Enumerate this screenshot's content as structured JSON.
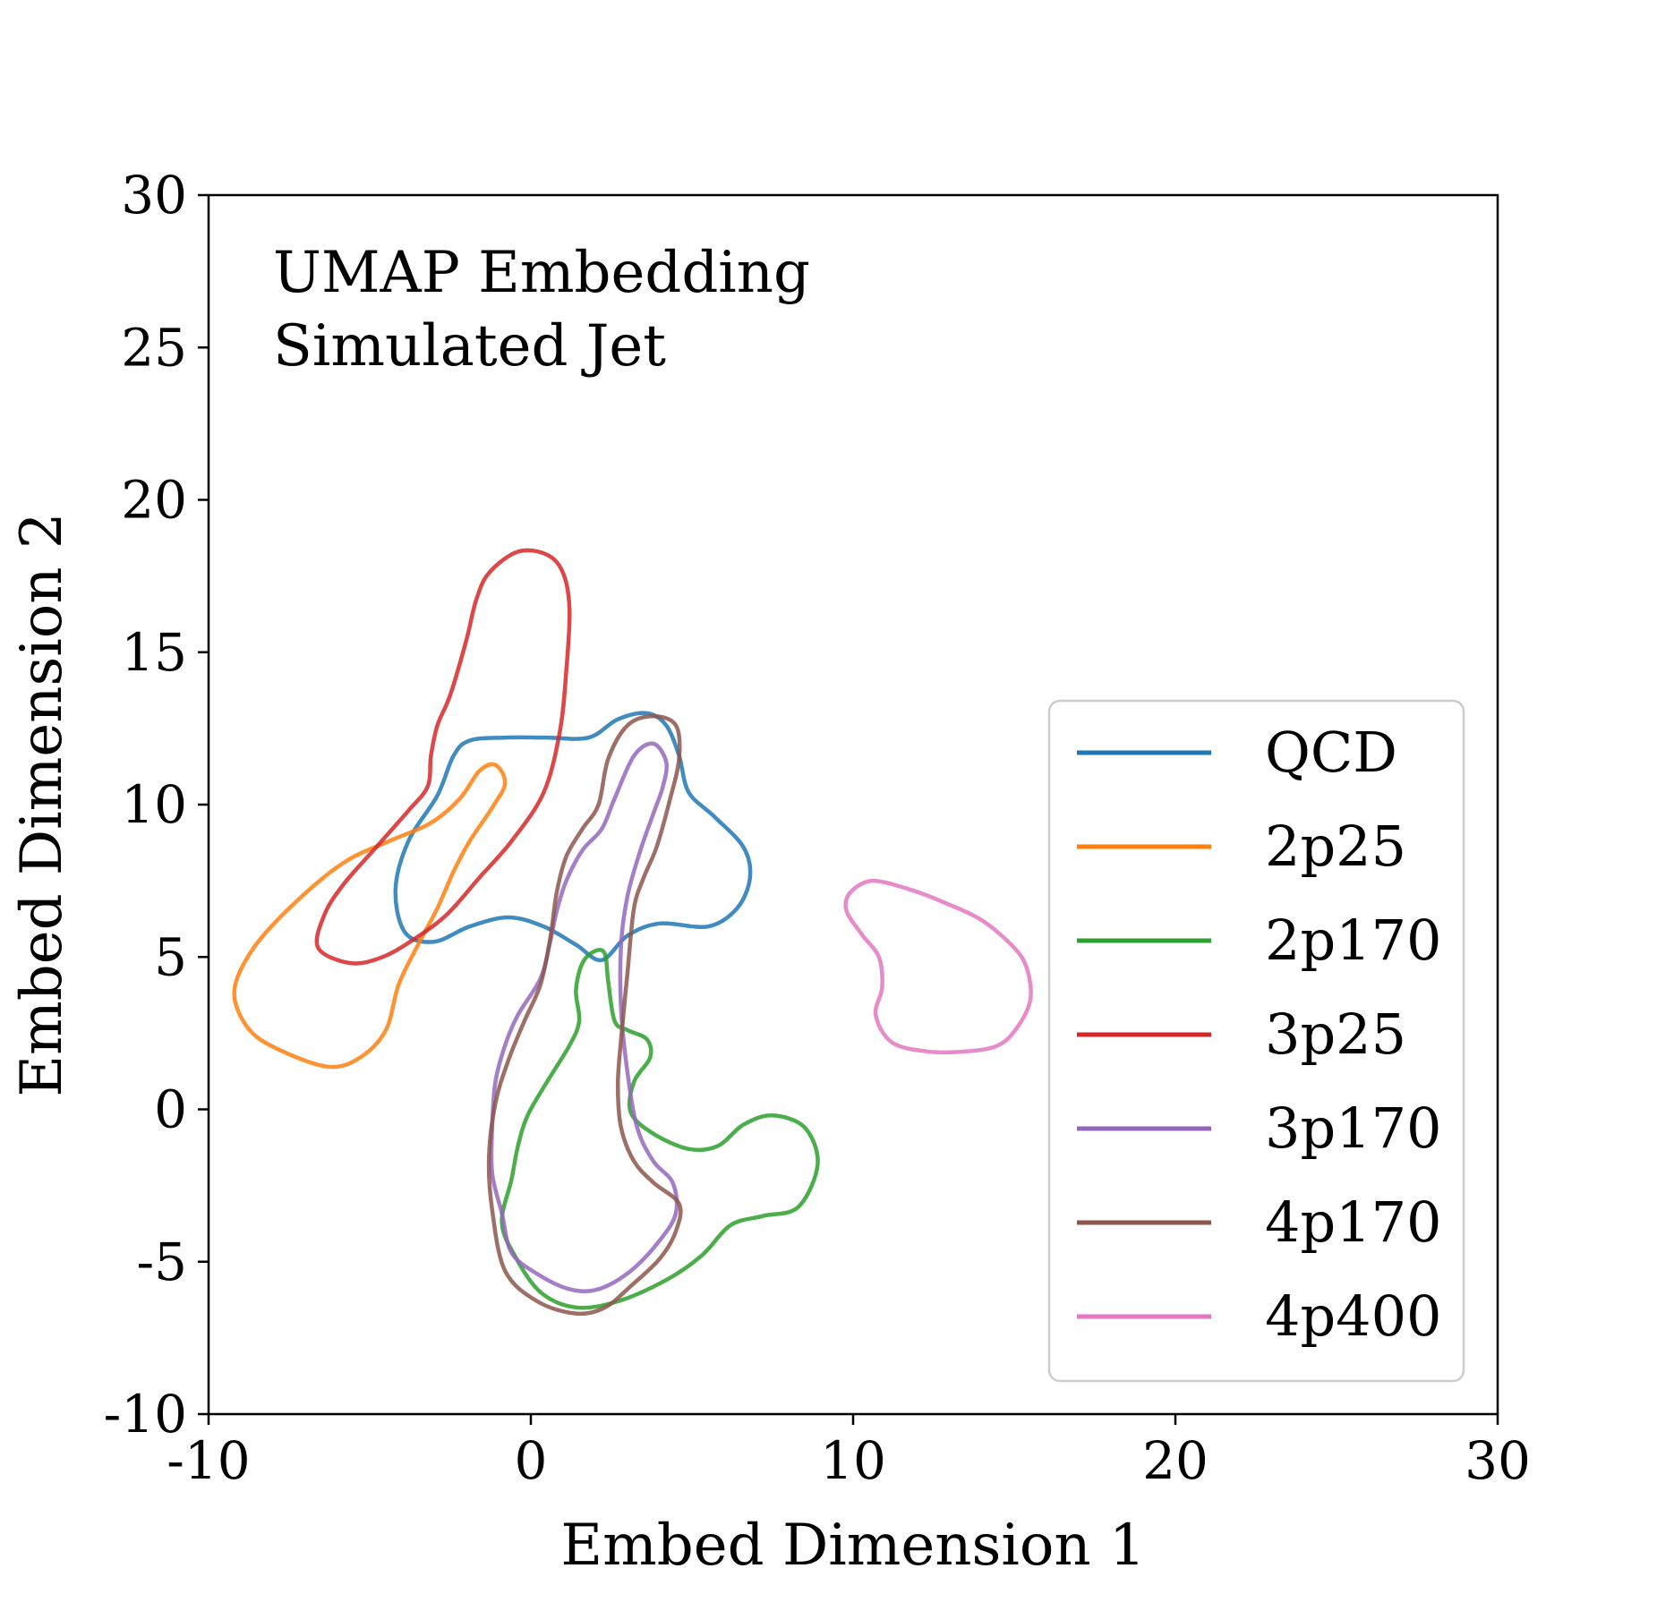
{
  "chart_data": {
    "type": "line",
    "annotation": [
      "UMAP Embedding",
      "Simulated Jet"
    ],
    "xlabel": "Embed Dimension 1",
    "ylabel": "Embed Dimension 2",
    "xlim": [
      -10,
      30
    ],
    "ylim": [
      -10,
      30
    ],
    "xticks": [
      -10,
      0,
      10,
      20,
      30
    ],
    "yticks": [
      -10,
      -5,
      0,
      5,
      10,
      15,
      20,
      25,
      30
    ],
    "legend_position": "center-right",
    "series": [
      {
        "name": "QCD",
        "color": "#1f77b4",
        "closed": true,
        "points": [
          [
            -0.7,
            6.3
          ],
          [
            0.4,
            6.0
          ],
          [
            1.4,
            5.4
          ],
          [
            2.2,
            4.9
          ],
          [
            3.0,
            5.7
          ],
          [
            4.0,
            6.1
          ],
          [
            5.5,
            6.0
          ],
          [
            6.4,
            6.6
          ],
          [
            6.8,
            7.6
          ],
          [
            6.6,
            8.6
          ],
          [
            5.7,
            9.6
          ],
          [
            4.9,
            10.4
          ],
          [
            4.6,
            11.6
          ],
          [
            4.2,
            12.6
          ],
          [
            3.6,
            13.0
          ],
          [
            2.7,
            12.8
          ],
          [
            1.8,
            12.2
          ],
          [
            0.5,
            12.2
          ],
          [
            -0.8,
            12.2
          ],
          [
            -1.9,
            12.1
          ],
          [
            -2.4,
            11.6
          ],
          [
            -2.9,
            10.3
          ],
          [
            -3.8,
            8.8
          ],
          [
            -4.2,
            7.2
          ],
          [
            -3.9,
            5.8
          ],
          [
            -3.0,
            5.5
          ],
          [
            -1.9,
            6.0
          ]
        ]
      },
      {
        "name": "2p25",
        "color": "#ff7f0e",
        "closed": true,
        "points": [
          [
            -7.9,
            2.0
          ],
          [
            -6.3,
            1.4
          ],
          [
            -5.3,
            1.7
          ],
          [
            -4.5,
            2.6
          ],
          [
            -4.1,
            4.1
          ],
          [
            -3.5,
            5.4
          ],
          [
            -2.9,
            6.6
          ],
          [
            -2.4,
            7.8
          ],
          [
            -1.9,
            8.8
          ],
          [
            -1.2,
            9.9
          ],
          [
            -0.8,
            10.7
          ],
          [
            -1.1,
            11.3
          ],
          [
            -1.6,
            11.1
          ],
          [
            -2.2,
            10.2
          ],
          [
            -3.1,
            9.4
          ],
          [
            -4.4,
            8.8
          ],
          [
            -5.8,
            8.1
          ],
          [
            -7.3,
            6.8
          ],
          [
            -8.6,
            5.3
          ],
          [
            -9.2,
            3.9
          ],
          [
            -8.8,
            2.7
          ]
        ]
      },
      {
        "name": "2p170",
        "color": "#2ca02c",
        "closed": true,
        "points": [
          [
            -0.5,
            -4.8
          ],
          [
            0.3,
            -6.0
          ],
          [
            1.4,
            -6.5
          ],
          [
            2.7,
            -6.3
          ],
          [
            4.2,
            -5.6
          ],
          [
            5.3,
            -4.8
          ],
          [
            6.2,
            -3.8
          ],
          [
            7.2,
            -3.5
          ],
          [
            8.3,
            -3.2
          ],
          [
            8.9,
            -1.8
          ],
          [
            8.5,
            -0.6
          ],
          [
            7.5,
            -0.2
          ],
          [
            6.6,
            -0.5
          ],
          [
            5.8,
            -1.2
          ],
          [
            4.9,
            -1.3
          ],
          [
            3.8,
            -0.8
          ],
          [
            3.1,
            -0.1
          ],
          [
            3.2,
            0.9
          ],
          [
            3.7,
            1.7
          ],
          [
            3.6,
            2.3
          ],
          [
            3.0,
            2.6
          ],
          [
            2.6,
            2.9
          ],
          [
            2.4,
            4.2
          ],
          [
            2.3,
            5.1
          ],
          [
            2.0,
            5.2
          ],
          [
            1.6,
            4.8
          ],
          [
            1.4,
            3.9
          ],
          [
            1.5,
            2.9
          ],
          [
            1.2,
            2.1
          ],
          [
            0.5,
            0.9
          ],
          [
            -0.1,
            -0.2
          ],
          [
            -0.4,
            -1.2
          ],
          [
            -0.6,
            -2.3
          ],
          [
            -0.9,
            -3.7
          ]
        ]
      },
      {
        "name": "3p25",
        "color": "#d62728",
        "closed": true,
        "points": [
          [
            -6.6,
            5.3
          ],
          [
            -5.6,
            4.8
          ],
          [
            -4.6,
            5.0
          ],
          [
            -3.6,
            5.6
          ],
          [
            -2.6,
            6.4
          ],
          [
            -1.6,
            7.6
          ],
          [
            -0.6,
            8.8
          ],
          [
            0.4,
            10.4
          ],
          [
            0.9,
            12.4
          ],
          [
            1.1,
            14.4
          ],
          [
            1.2,
            16.4
          ],
          [
            1.0,
            17.6
          ],
          [
            0.5,
            18.2
          ],
          [
            -0.4,
            18.3
          ],
          [
            -1.3,
            17.6
          ],
          [
            -1.7,
            16.7
          ],
          [
            -2.0,
            15.4
          ],
          [
            -2.5,
            13.6
          ],
          [
            -2.9,
            12.6
          ],
          [
            -3.1,
            11.6
          ],
          [
            -3.2,
            10.6
          ],
          [
            -3.8,
            9.8
          ],
          [
            -4.8,
            8.6
          ],
          [
            -5.8,
            7.4
          ],
          [
            -6.4,
            6.4
          ]
        ]
      },
      {
        "name": "3p170",
        "color": "#9467bd",
        "closed": true,
        "points": [
          [
            -0.9,
            -3.4
          ],
          [
            -0.6,
            -4.7
          ],
          [
            0.2,
            -5.4
          ],
          [
            1.2,
            -5.9
          ],
          [
            2.1,
            -5.9
          ],
          [
            3.1,
            -5.3
          ],
          [
            4.0,
            -4.3
          ],
          [
            4.5,
            -3.4
          ],
          [
            4.4,
            -2.4
          ],
          [
            3.8,
            -1.7
          ],
          [
            3.3,
            -0.6
          ],
          [
            3.0,
            1.2
          ],
          [
            2.8,
            3.3
          ],
          [
            2.8,
            5.4
          ],
          [
            3.0,
            7.0
          ],
          [
            3.4,
            8.5
          ],
          [
            3.8,
            9.7
          ],
          [
            4.1,
            10.6
          ],
          [
            4.2,
            11.4
          ],
          [
            3.8,
            12.0
          ],
          [
            3.2,
            11.6
          ],
          [
            2.6,
            10.2
          ],
          [
            2.2,
            9.2
          ],
          [
            1.6,
            8.5
          ],
          [
            1.1,
            7.5
          ],
          [
            0.8,
            6.5
          ],
          [
            0.6,
            5.5
          ],
          [
            0.3,
            4.3
          ],
          [
            -0.4,
            3.1
          ],
          [
            -0.8,
            2.1
          ],
          [
            -1.1,
            0.9
          ],
          [
            -1.2,
            -0.6
          ],
          [
            -1.2,
            -2.1
          ]
        ]
      },
      {
        "name": "4p170",
        "color": "#8c564b",
        "closed": true,
        "points": [
          [
            -1.2,
            -3.3
          ],
          [
            -0.8,
            -5.3
          ],
          [
            0.2,
            -6.3
          ],
          [
            1.4,
            -6.7
          ],
          [
            2.3,
            -6.5
          ],
          [
            3.1,
            -5.8
          ],
          [
            4.0,
            -4.9
          ],
          [
            4.5,
            -4.0
          ],
          [
            4.6,
            -3.1
          ],
          [
            3.8,
            -2.4
          ],
          [
            3.2,
            -1.7
          ],
          [
            2.8,
            -0.6
          ],
          [
            2.7,
            0.8
          ],
          [
            2.8,
            2.3
          ],
          [
            3.0,
            4.5
          ],
          [
            3.2,
            6.6
          ],
          [
            3.5,
            7.6
          ],
          [
            3.9,
            8.6
          ],
          [
            4.3,
            10.1
          ],
          [
            4.6,
            11.5
          ],
          [
            4.5,
            12.6
          ],
          [
            3.8,
            12.9
          ],
          [
            3.0,
            12.6
          ],
          [
            2.4,
            11.5
          ],
          [
            2.1,
            10.0
          ],
          [
            1.6,
            9.2
          ],
          [
            1.1,
            8.3
          ],
          [
            0.8,
            7.1
          ],
          [
            0.6,
            5.6
          ],
          [
            0.3,
            4.1
          ],
          [
            -0.2,
            2.9
          ],
          [
            -0.7,
            1.6
          ],
          [
            -1.1,
            0.2
          ],
          [
            -1.3,
            -1.6
          ]
        ]
      },
      {
        "name": "4p400",
        "color": "#e377c2",
        "closed": true,
        "points": [
          [
            10.7,
            3.1
          ],
          [
            11.2,
            2.2
          ],
          [
            12.3,
            1.9
          ],
          [
            13.5,
            1.9
          ],
          [
            14.5,
            2.1
          ],
          [
            15.1,
            2.7
          ],
          [
            15.5,
            3.6
          ],
          [
            15.4,
            4.6
          ],
          [
            15.0,
            5.3
          ],
          [
            14.0,
            6.2
          ],
          [
            12.8,
            6.8
          ],
          [
            11.8,
            7.2
          ],
          [
            10.6,
            7.5
          ],
          [
            9.9,
            7.1
          ],
          [
            9.8,
            6.5
          ],
          [
            10.3,
            5.7
          ],
          [
            10.8,
            5.0
          ],
          [
            10.9,
            4.0
          ]
        ]
      }
    ]
  }
}
